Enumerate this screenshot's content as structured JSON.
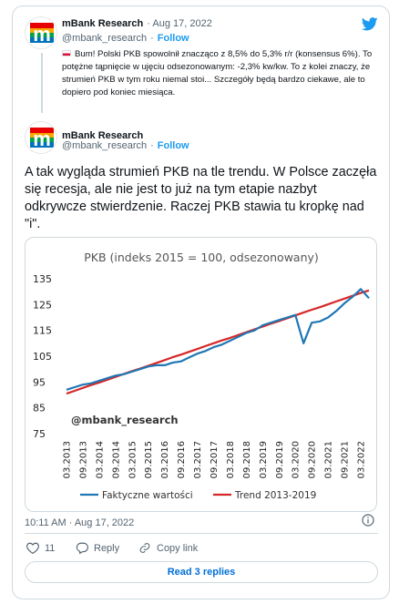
{
  "colors": {
    "accent": "#1d9bf0",
    "text": "#0f1419",
    "muted": "#536471",
    "border": "#cfd9de",
    "series_actual": "#1f77b4",
    "series_trend": "#d62728"
  },
  "quoted_tweet": {
    "author": "mBank Research",
    "date": "· Aug 17, 2022",
    "handle": "@mbank_research",
    "follow": "Follow",
    "text": "Bum! Polski PKB spowolnił znacząco z 8,5% do 5,3% r/r (konsensus 6%). To potężne tąpnięcie w ujęciu odsezonowanym: -2,3% kw/kw. To z kolei znaczy, że strumień PKB w tym roku niemal stoi... Szczegóły będą bardzo ciekawe, ale to dopiero pod koniec miesiąca."
  },
  "main_tweet": {
    "author": "mBank Research",
    "handle": "@mbank_research",
    "follow": "Follow",
    "text": "A tak wygląda strumień PKB na tle trendu. W Polsce zaczęła się recesja, ale nie jest to już na tym etapie nazbyt odkrywcze stwierdzenie. Raczej PKB stawia tu kropkę nad \"i\".",
    "timestamp": "10:11 AM · Aug 17, 2022",
    "likes": "11",
    "reply_label": "Reply",
    "copy_link_label": "Copy link",
    "read_replies": "Read 3 replies"
  },
  "chart_data": {
    "type": "line",
    "title": "PKB (indeks 2015 = 100, odsezonowany)",
    "watermark": "@mbank_research",
    "ylim": [
      75,
      135
    ],
    "yticks": [
      75,
      85,
      95,
      105,
      115,
      125,
      135
    ],
    "xticks": [
      "03.2013",
      "09.2013",
      "03.2014",
      "09.2014",
      "03.2015",
      "09.2015",
      "03.2016",
      "09.2016",
      "03.2017",
      "09.2017",
      "03.2018",
      "09.2018",
      "03.2019",
      "09.2019",
      "03.2020",
      "09.2020",
      "03.2021",
      "09.2021",
      "03.2022"
    ],
    "x": [
      "03.2013",
      "06.2013",
      "09.2013",
      "12.2013",
      "03.2014",
      "06.2014",
      "09.2014",
      "12.2014",
      "03.2015",
      "06.2015",
      "09.2015",
      "12.2015",
      "03.2016",
      "06.2016",
      "09.2016",
      "12.2016",
      "03.2017",
      "06.2017",
      "09.2017",
      "12.2017",
      "03.2018",
      "06.2018",
      "09.2018",
      "12.2018",
      "03.2019",
      "06.2019",
      "09.2019",
      "12.2019",
      "03.2020",
      "06.2020",
      "09.2020",
      "12.2020",
      "03.2021",
      "06.2021",
      "09.2021",
      "12.2021",
      "03.2022",
      "06.2022"
    ],
    "series": [
      {
        "name": "Faktyczne wartości",
        "color": "#1f77b4",
        "values": [
          92,
          93,
          94,
          94.5,
          95.5,
          96.5,
          97.5,
          98,
          99,
          100,
          101,
          101.5,
          101.5,
          102.5,
          103,
          104.5,
          106,
          107,
          108.5,
          109.5,
          111,
          112.5,
          114,
          115,
          117,
          118,
          119,
          120,
          121,
          110,
          118,
          118.5,
          120,
          122.5,
          125.5,
          128,
          131,
          127.5
        ]
      },
      {
        "name": "Trend 2013-2019",
        "color": "#d62728",
        "values": [
          90.5,
          91.6,
          92.7,
          93.8,
          94.8,
          95.9,
          97,
          98.1,
          99.2,
          100.2,
          101.3,
          102.4,
          103.5,
          104.6,
          105.6,
          106.7,
          107.8,
          108.9,
          110,
          111.1,
          112.1,
          113.2,
          114.3,
          115.4,
          116.5,
          117.6,
          118.6,
          119.7,
          120.8,
          121.9,
          123,
          124,
          125.1,
          126.2,
          127.3,
          128.4,
          129.5,
          130.5
        ]
      }
    ],
    "legend_position": "bottom",
    "grid": false
  }
}
